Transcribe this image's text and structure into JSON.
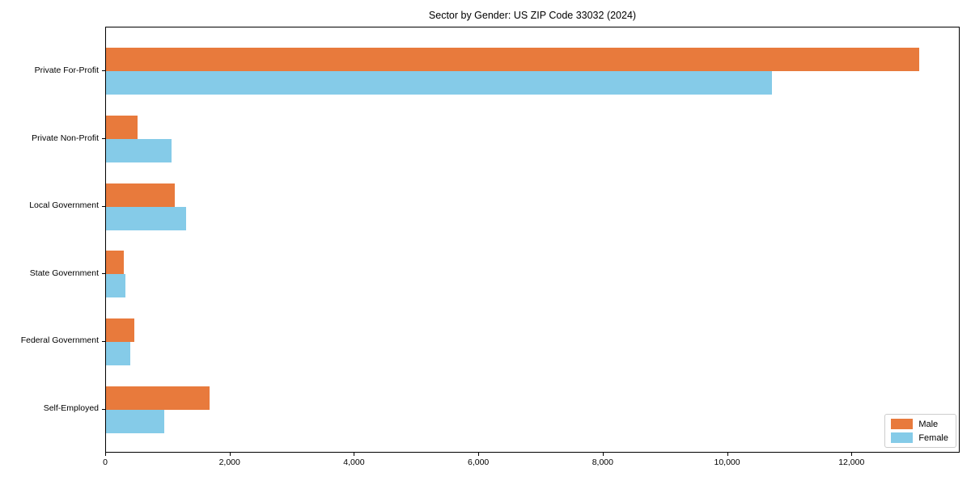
{
  "chart_data": {
    "type": "bar",
    "orientation": "horizontal",
    "title": "Sector by Gender: US ZIP Code 33032 (2024)",
    "categories": [
      "Private For-Profit",
      "Private Non-Profit",
      "Local Government",
      "State Government",
      "Federal Government",
      "Self-Employed"
    ],
    "series": [
      {
        "name": "Male",
        "color": "#e87a3c",
        "values": [
          13080,
          510,
          1100,
          290,
          450,
          1660
        ]
      },
      {
        "name": "Female",
        "color": "#85cbe8",
        "values": [
          10710,
          1055,
          1290,
          315,
          390,
          935
        ]
      }
    ],
    "xlabel": "",
    "ylabel": "",
    "xlim": [
      0,
      13740
    ],
    "x_ticks": [
      0,
      2000,
      4000,
      6000,
      8000,
      10000,
      12000
    ],
    "x_tick_labels": [
      "0",
      "2,000",
      "4,000",
      "6,000",
      "8,000",
      "10,000",
      "12,000"
    ],
    "legend": {
      "position": "lower right",
      "entries": [
        {
          "label": "Male",
          "color": "#e87a3c"
        },
        {
          "label": "Female",
          "color": "#85cbe8"
        }
      ]
    },
    "grid": false,
    "background": "#ffffff",
    "spine_color": "#000000"
  }
}
